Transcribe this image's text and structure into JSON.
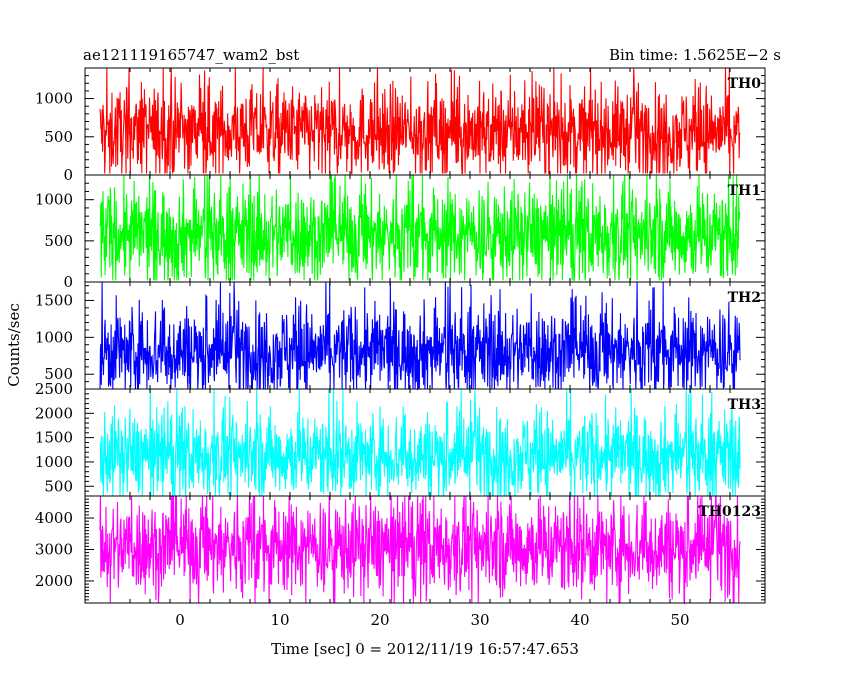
{
  "header": {
    "title": "ae121119165747_wam2_bst",
    "bin_time": "Bin time: 1.5625E−2 s"
  },
  "axes": {
    "xlabel": "Time [sec] 0 = 2012/11/19 16:57:47.653",
    "ylabel": "Counts/sec"
  },
  "chart_data": {
    "type": "line",
    "title": "ae121119165747_wam2_bst",
    "xlabel": "Time [sec] 0 = 2012/11/19 16:57:47.653",
    "ylabel": "Counts/sec",
    "bin_time_s": 0.015625,
    "xlim": [
      -9.5,
      58.5
    ],
    "x_ticks": [
      0,
      10,
      20,
      30,
      40,
      50
    ],
    "x_data_range": [
      -8,
      56
    ],
    "grid": false,
    "panels": [
      {
        "name": "TH0",
        "color": "#ff0000",
        "ylim": [
          0,
          1400
        ],
        "y_ticks": [
          0,
          500,
          1000
        ],
        "mean": 570,
        "typical_range": [
          130,
          1050
        ],
        "min": 20,
        "max": 1400
      },
      {
        "name": "TH1",
        "color": "#00ff00",
        "ylim": [
          0,
          1300
        ],
        "y_ticks": [
          0,
          500,
          1000
        ],
        "mean": 580,
        "typical_range": [
          120,
          1050
        ],
        "min": 20,
        "max": 1300
      },
      {
        "name": "TH2",
        "color": "#0000ff",
        "ylim": [
          300,
          1750
        ],
        "y_ticks": [
          500,
          1000,
          1500
        ],
        "mean": 820,
        "typical_range": [
          380,
          1350
        ],
        "min": 300,
        "max": 1750
      },
      {
        "name": "TH3",
        "color": "#00ffff",
        "ylim": [
          300,
          2500
        ],
        "y_ticks": [
          500,
          1000,
          1500,
          2000,
          2500
        ],
        "mean": 1150,
        "typical_range": [
          500,
          1900
        ],
        "min": 300,
        "max": 2500
      },
      {
        "name": "TH0123",
        "color": "#ff00ff",
        "ylim": [
          1300,
          4700
        ],
        "y_ticks": [
          2000,
          3000,
          4000
        ],
        "mean": 3100,
        "typical_range": [
          1800,
          4200
        ],
        "min": 1300,
        "max": 4700
      }
    ]
  }
}
